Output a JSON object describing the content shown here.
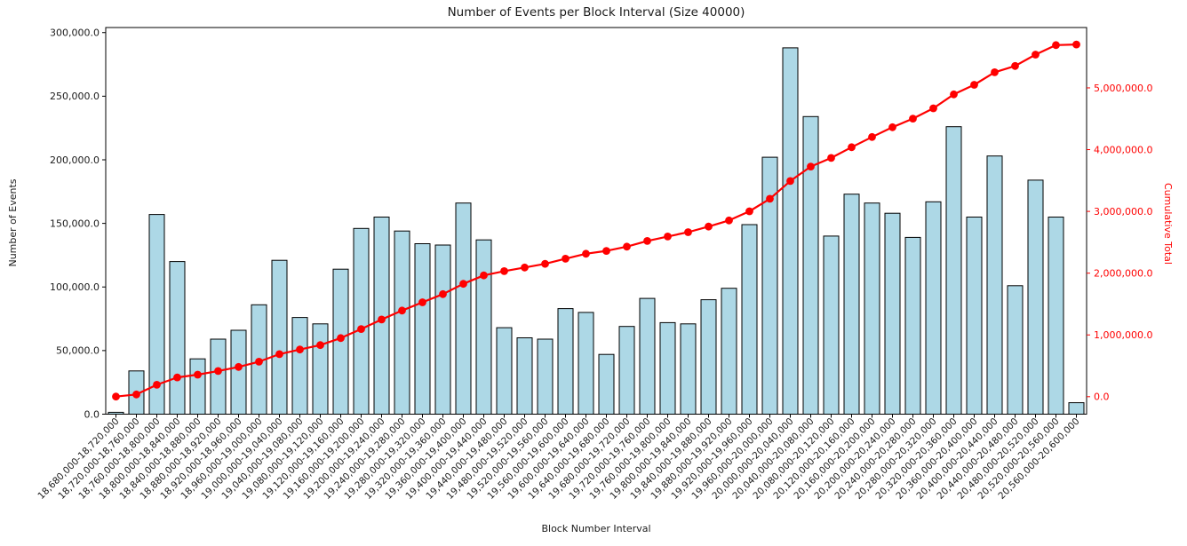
{
  "chart_data": {
    "type": "bar",
    "title": "Number of Events per Block Interval (Size 40000)",
    "xlabel": "Block Number Interval",
    "ylabel": "Number of Events",
    "ylabel_right": "Cumulative Total",
    "grid": false,
    "legend": "none",
    "left_lim": [
      0,
      304000
    ],
    "right_lim": [
      -283000,
      5977000
    ],
    "left_axis": {
      "tick_values": [
        0,
        50000,
        100000,
        150000,
        200000,
        250000,
        300000
      ],
      "tick_labels": [
        "0.0",
        "50,000.0",
        "100,000.0",
        "150,000.0",
        "200,000.0",
        "250,000.0",
        "300,000.0"
      ],
      "color": "#1a1a1a"
    },
    "right_axis": {
      "tick_values": [
        0,
        1000000,
        2000000,
        3000000,
        4000000,
        5000000
      ],
      "tick_labels": [
        "0.0",
        "1,000,000.0",
        "2,000,000.0",
        "3,000,000.0",
        "4,000,000.0",
        "5,000,000.0"
      ],
      "color": "#ff0000"
    },
    "categories": [
      "18,680,000-18,720,000",
      "18,720,000-18,760,000",
      "18,760,000-18,800,000",
      "18,800,000-18,840,000",
      "18,840,000-18,880,000",
      "18,880,000-18,920,000",
      "18,920,000-18,960,000",
      "18,960,000-19,000,000",
      "19,000,000-19,040,000",
      "19,040,000-19,080,000",
      "19,080,000-19,120,000",
      "19,120,000-19,160,000",
      "19,160,000-19,200,000",
      "19,200,000-19,240,000",
      "19,240,000-19,280,000",
      "19,280,000-19,320,000",
      "19,320,000-19,360,000",
      "19,360,000-19,400,000",
      "19,400,000-19,440,000",
      "19,440,000-19,480,000",
      "19,480,000-19,520,000",
      "19,520,000-19,560,000",
      "19,560,000-19,600,000",
      "19,600,000-19,640,000",
      "19,640,000-19,680,000",
      "19,680,000-19,720,000",
      "19,720,000-19,760,000",
      "19,760,000-19,800,000",
      "19,800,000-19,840,000",
      "19,840,000-19,880,000",
      "19,880,000-19,920,000",
      "19,920,000-19,960,000",
      "19,960,000-20,000,000",
      "20,000,000-20,040,000",
      "20,040,000-20,080,000",
      "20,080,000-20,120,000",
      "20,120,000-20,160,000",
      "20,160,000-20,200,000",
      "20,200,000-20,240,000",
      "20,240,000-20,280,000",
      "20,280,000-20,320,000",
      "20,320,000-20,360,000",
      "20,360,000-20,400,000",
      "20,400,000-20,440,000",
      "20,440,000-20,480,000",
      "20,480,000-20,520,000",
      "20,520,000-20,560,000",
      "20,560,000-20,600,000"
    ],
    "series": [
      {
        "name": "Number of Events",
        "type": "bar",
        "axis": "left",
        "color": "#ADD8E6",
        "edge_color": "#000000",
        "values": [
          1500,
          34000,
          157000,
          120000,
          43500,
          59000,
          66000,
          86000,
          121000,
          76000,
          71000,
          114000,
          146000,
          155000,
          144000,
          134000,
          133000,
          166000,
          137000,
          68000,
          60000,
          59000,
          83000,
          80000,
          47000,
          69000,
          91000,
          72000,
          71000,
          90000,
          99000,
          149000,
          202000,
          288000,
          234000,
          140000,
          173000,
          166000,
          158000,
          139000,
          167000,
          226000,
          155000,
          203000,
          101000,
          184000,
          155000,
          9000
        ]
      },
      {
        "name": "Cumulative Total",
        "type": "line",
        "axis": "right",
        "color": "#ff0000",
        "marker": "circle",
        "values": [
          1500,
          35500,
          192500,
          312500,
          356000,
          415000,
          481000,
          567000,
          688000,
          764000,
          835000,
          949000,
          1095000,
          1250000,
          1394000,
          1528000,
          1661000,
          1827000,
          1964000,
          2032000,
          2092000,
          2151000,
          2234000,
          2314000,
          2361000,
          2430000,
          2521000,
          2593000,
          2664000,
          2754000,
          2853000,
          3002000,
          3204000,
          3492000,
          3726000,
          3866000,
          4039000,
          4205000,
          4363000,
          4502000,
          4669000,
          4895000,
          5050000,
          5253000,
          5354000,
          5538000,
          5693000,
          5702000
        ]
      }
    ]
  }
}
